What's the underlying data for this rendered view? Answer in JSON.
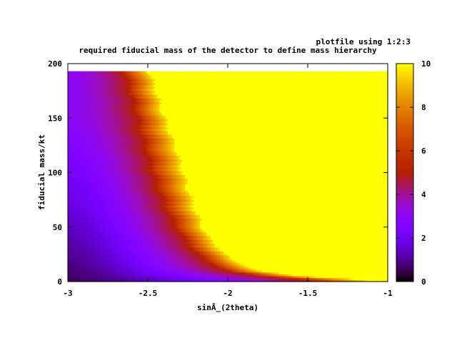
{
  "chart_data": {
    "type": "heatmap",
    "title": "required fiducial mass of the detector to define mass hierarchy",
    "key_label": "plotfile using 1:2:3",
    "xlabel": "sinÂ_(2theta)",
    "ylabel": "fiducial mass/kt",
    "xlim": [
      -3,
      -1
    ],
    "ylim": [
      0,
      200
    ],
    "xticks": [
      "-3",
      "-2.5",
      "-2",
      "-1.5",
      "-1"
    ],
    "yticks": [
      "0",
      "50",
      "100",
      "150",
      "200"
    ],
    "zlim": [
      0,
      10
    ],
    "cbticks": [
      "0",
      "2",
      "4",
      "6",
      "8",
      "10"
    ],
    "data_y_max": 193,
    "palette": "gnuplot default (black-blue-violet-red-orange-yellow)",
    "boundary_z5": {
      "y": [
        193,
        180,
        160,
        140,
        120,
        100,
        80,
        60,
        40,
        20,
        10,
        5,
        2
      ],
      "x": [
        -2.65,
        -2.62,
        -2.58,
        -2.55,
        -2.51,
        -2.47,
        -2.42,
        -2.36,
        -2.28,
        -2.15,
        -2.0,
        -1.8,
        -1.5
      ]
    },
    "boundary_z9_5": {
      "y": [
        193,
        180,
        160,
        140,
        120,
        100,
        80,
        60,
        40,
        20,
        10,
        5,
        2
      ],
      "x": [
        -2.49,
        -2.46,
        -2.42,
        -2.37,
        -2.32,
        -2.28,
        -2.24,
        -2.19,
        -2.12,
        -1.98,
        -1.8,
        -1.55,
        -1.15
      ]
    }
  }
}
